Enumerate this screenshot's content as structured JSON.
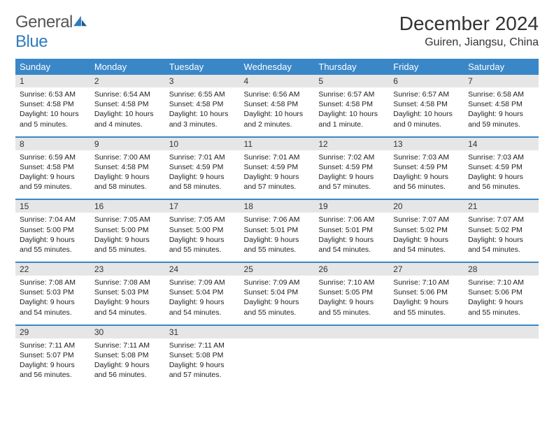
{
  "logo": {
    "name_a": "General",
    "name_b": "Blue"
  },
  "title": "December 2024",
  "location": "Guiren, Jiangsu, China",
  "colors": {
    "header_bg": "#3a87c8",
    "header_fg": "#ffffff",
    "daynum_bg": "#e6e6e6",
    "rule": "#3a87c8",
    "logo_gray": "#555555",
    "logo_blue": "#2e7cc0"
  },
  "weekdays": [
    "Sunday",
    "Monday",
    "Tuesday",
    "Wednesday",
    "Thursday",
    "Friday",
    "Saturday"
  ],
  "weeks": [
    [
      {
        "n": "1",
        "sr": "Sunrise: 6:53 AM",
        "ss": "Sunset: 4:58 PM",
        "dl": "Daylight: 10 hours and 5 minutes."
      },
      {
        "n": "2",
        "sr": "Sunrise: 6:54 AM",
        "ss": "Sunset: 4:58 PM",
        "dl": "Daylight: 10 hours and 4 minutes."
      },
      {
        "n": "3",
        "sr": "Sunrise: 6:55 AM",
        "ss": "Sunset: 4:58 PM",
        "dl": "Daylight: 10 hours and 3 minutes."
      },
      {
        "n": "4",
        "sr": "Sunrise: 6:56 AM",
        "ss": "Sunset: 4:58 PM",
        "dl": "Daylight: 10 hours and 2 minutes."
      },
      {
        "n": "5",
        "sr": "Sunrise: 6:57 AM",
        "ss": "Sunset: 4:58 PM",
        "dl": "Daylight: 10 hours and 1 minute."
      },
      {
        "n": "6",
        "sr": "Sunrise: 6:57 AM",
        "ss": "Sunset: 4:58 PM",
        "dl": "Daylight: 10 hours and 0 minutes."
      },
      {
        "n": "7",
        "sr": "Sunrise: 6:58 AM",
        "ss": "Sunset: 4:58 PM",
        "dl": "Daylight: 9 hours and 59 minutes."
      }
    ],
    [
      {
        "n": "8",
        "sr": "Sunrise: 6:59 AM",
        "ss": "Sunset: 4:58 PM",
        "dl": "Daylight: 9 hours and 59 minutes."
      },
      {
        "n": "9",
        "sr": "Sunrise: 7:00 AM",
        "ss": "Sunset: 4:58 PM",
        "dl": "Daylight: 9 hours and 58 minutes."
      },
      {
        "n": "10",
        "sr": "Sunrise: 7:01 AM",
        "ss": "Sunset: 4:59 PM",
        "dl": "Daylight: 9 hours and 58 minutes."
      },
      {
        "n": "11",
        "sr": "Sunrise: 7:01 AM",
        "ss": "Sunset: 4:59 PM",
        "dl": "Daylight: 9 hours and 57 minutes."
      },
      {
        "n": "12",
        "sr": "Sunrise: 7:02 AM",
        "ss": "Sunset: 4:59 PM",
        "dl": "Daylight: 9 hours and 57 minutes."
      },
      {
        "n": "13",
        "sr": "Sunrise: 7:03 AM",
        "ss": "Sunset: 4:59 PM",
        "dl": "Daylight: 9 hours and 56 minutes."
      },
      {
        "n": "14",
        "sr": "Sunrise: 7:03 AM",
        "ss": "Sunset: 4:59 PM",
        "dl": "Daylight: 9 hours and 56 minutes."
      }
    ],
    [
      {
        "n": "15",
        "sr": "Sunrise: 7:04 AM",
        "ss": "Sunset: 5:00 PM",
        "dl": "Daylight: 9 hours and 55 minutes."
      },
      {
        "n": "16",
        "sr": "Sunrise: 7:05 AM",
        "ss": "Sunset: 5:00 PM",
        "dl": "Daylight: 9 hours and 55 minutes."
      },
      {
        "n": "17",
        "sr": "Sunrise: 7:05 AM",
        "ss": "Sunset: 5:00 PM",
        "dl": "Daylight: 9 hours and 55 minutes."
      },
      {
        "n": "18",
        "sr": "Sunrise: 7:06 AM",
        "ss": "Sunset: 5:01 PM",
        "dl": "Daylight: 9 hours and 55 minutes."
      },
      {
        "n": "19",
        "sr": "Sunrise: 7:06 AM",
        "ss": "Sunset: 5:01 PM",
        "dl": "Daylight: 9 hours and 54 minutes."
      },
      {
        "n": "20",
        "sr": "Sunrise: 7:07 AM",
        "ss": "Sunset: 5:02 PM",
        "dl": "Daylight: 9 hours and 54 minutes."
      },
      {
        "n": "21",
        "sr": "Sunrise: 7:07 AM",
        "ss": "Sunset: 5:02 PM",
        "dl": "Daylight: 9 hours and 54 minutes."
      }
    ],
    [
      {
        "n": "22",
        "sr": "Sunrise: 7:08 AM",
        "ss": "Sunset: 5:03 PM",
        "dl": "Daylight: 9 hours and 54 minutes."
      },
      {
        "n": "23",
        "sr": "Sunrise: 7:08 AM",
        "ss": "Sunset: 5:03 PM",
        "dl": "Daylight: 9 hours and 54 minutes."
      },
      {
        "n": "24",
        "sr": "Sunrise: 7:09 AM",
        "ss": "Sunset: 5:04 PM",
        "dl": "Daylight: 9 hours and 54 minutes."
      },
      {
        "n": "25",
        "sr": "Sunrise: 7:09 AM",
        "ss": "Sunset: 5:04 PM",
        "dl": "Daylight: 9 hours and 55 minutes."
      },
      {
        "n": "26",
        "sr": "Sunrise: 7:10 AM",
        "ss": "Sunset: 5:05 PM",
        "dl": "Daylight: 9 hours and 55 minutes."
      },
      {
        "n": "27",
        "sr": "Sunrise: 7:10 AM",
        "ss": "Sunset: 5:06 PM",
        "dl": "Daylight: 9 hours and 55 minutes."
      },
      {
        "n": "28",
        "sr": "Sunrise: 7:10 AM",
        "ss": "Sunset: 5:06 PM",
        "dl": "Daylight: 9 hours and 55 minutes."
      }
    ],
    [
      {
        "n": "29",
        "sr": "Sunrise: 7:11 AM",
        "ss": "Sunset: 5:07 PM",
        "dl": "Daylight: 9 hours and 56 minutes."
      },
      {
        "n": "30",
        "sr": "Sunrise: 7:11 AM",
        "ss": "Sunset: 5:08 PM",
        "dl": "Daylight: 9 hours and 56 minutes."
      },
      {
        "n": "31",
        "sr": "Sunrise: 7:11 AM",
        "ss": "Sunset: 5:08 PM",
        "dl": "Daylight: 9 hours and 57 minutes."
      },
      null,
      null,
      null,
      null
    ]
  ]
}
